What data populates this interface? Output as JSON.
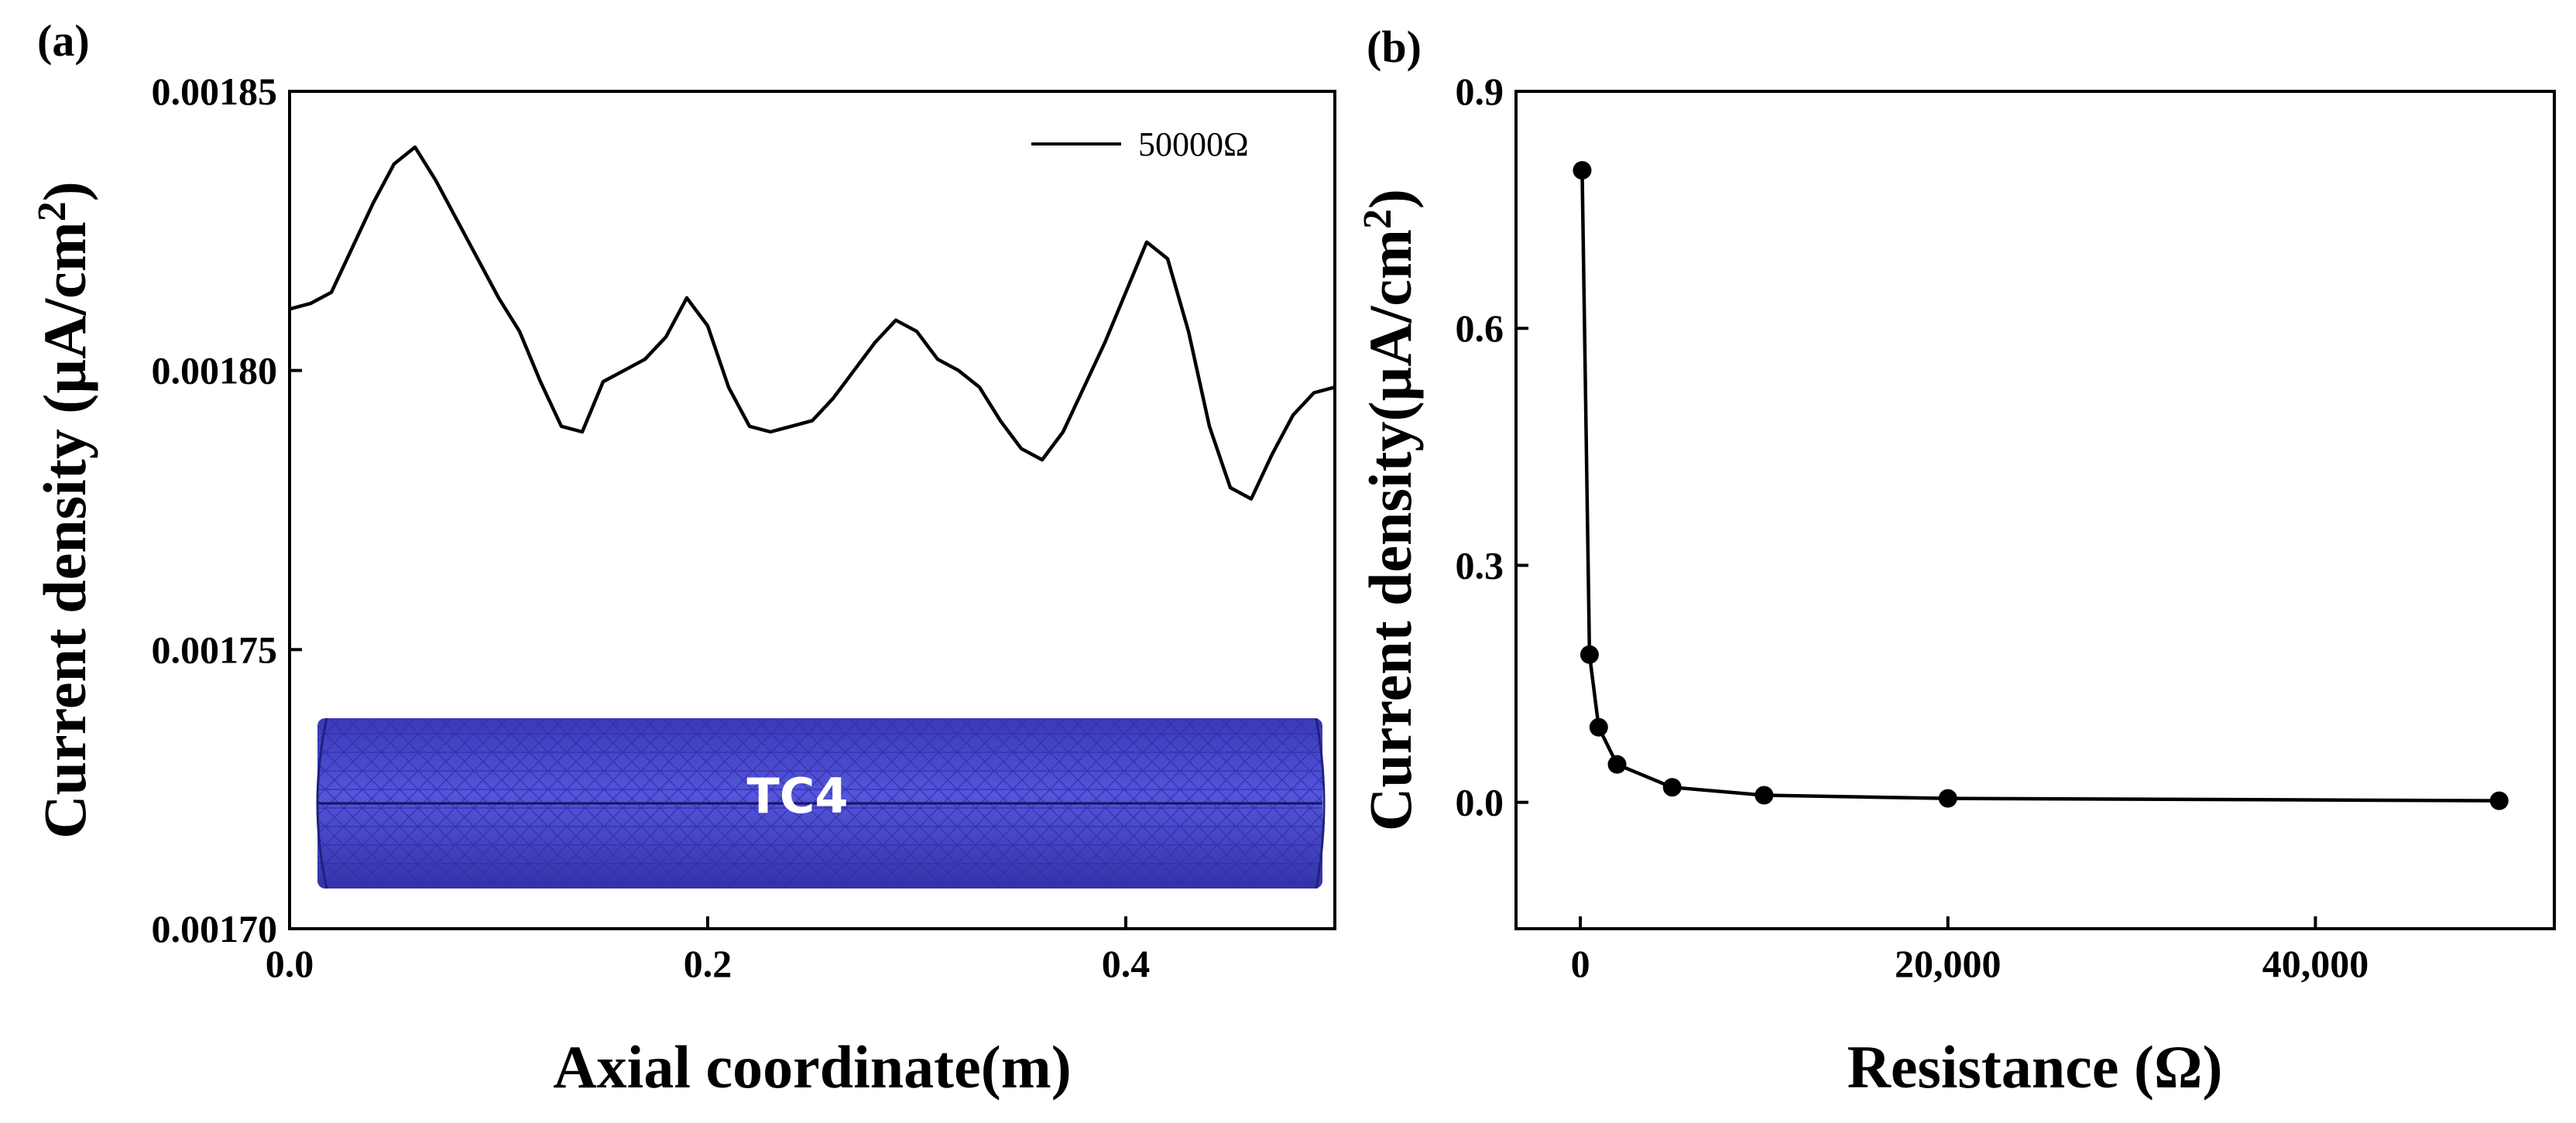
{
  "chart_data": [
    {
      "panel": "(a)",
      "type": "line",
      "xlabel": "Axial coordinate(m)",
      "ylabel_prefix": "Current density (",
      "ylabel_unit": "µA/cm",
      "ylabel_exp": "2",
      "ylabel_suffix": ")",
      "xlim": [
        0,
        0.5
      ],
      "ylim": [
        0.0017,
        0.00185
      ],
      "xticks": [
        0.0,
        0.2,
        0.4
      ],
      "xtick_labels": [
        "0.0",
        "0.2",
        "0.4"
      ],
      "yticks": [
        0.0017,
        0.00175,
        0.0018,
        0.00185
      ],
      "ytick_labels": [
        "0.00170",
        "0.00175",
        "0.00180",
        "0.00185"
      ],
      "legend": "location: top-right",
      "series": [
        {
          "name": "50000Ω",
          "x": [
            0.0,
            0.01,
            0.02,
            0.03,
            0.04,
            0.05,
            0.06,
            0.07,
            0.08,
            0.09,
            0.1,
            0.11,
            0.12,
            0.13,
            0.14,
            0.15,
            0.16,
            0.17,
            0.18,
            0.19,
            0.2,
            0.21,
            0.22,
            0.23,
            0.24,
            0.25,
            0.26,
            0.27,
            0.28,
            0.29,
            0.3,
            0.31,
            0.32,
            0.33,
            0.34,
            0.35,
            0.36,
            0.37,
            0.38,
            0.39,
            0.4,
            0.41,
            0.42,
            0.43,
            0.44,
            0.45,
            0.46,
            0.47,
            0.48,
            0.49,
            0.5
          ],
          "y": [
            0.001811,
            0.001812,
            0.001814,
            0.001822,
            0.00183,
            0.001837,
            0.00184,
            0.001834,
            0.001827,
            0.00182,
            0.001813,
            0.001807,
            0.001798,
            0.00179,
            0.001789,
            0.001798,
            0.0018,
            0.001802,
            0.001806,
            0.001813,
            0.001808,
            0.001797,
            0.00179,
            0.001789,
            0.00179,
            0.001791,
            0.001795,
            0.0018,
            0.001805,
            0.001809,
            0.001807,
            0.001802,
            0.0018,
            0.001797,
            0.001791,
            0.001786,
            0.001784,
            0.001789,
            0.001797,
            0.001805,
            0.001814,
            0.001823,
            0.00182,
            0.001807,
            0.00179,
            0.001779,
            0.001777,
            0.001785,
            0.001792,
            0.001796,
            0.001797
          ]
        }
      ],
      "inset": {
        "label": "TC4",
        "fill": "#4a4ad0",
        "mesh_color": "#2c2ca0"
      }
    },
    {
      "panel": "(b)",
      "type": "scatter",
      "connected": true,
      "xlabel": "Resistance (Ω)",
      "ylabel_prefix": "Current density(",
      "ylabel_unit": "µA/cm",
      "ylabel_exp": "2",
      "ylabel_suffix": ")",
      "xlim": [
        -3500,
        53000
      ],
      "ylim": [
        -0.16,
        0.9
      ],
      "xticks": [
        0,
        20000,
        40000
      ],
      "xtick_labels": [
        "0",
        "20,000",
        "40,000"
      ],
      "yticks": [
        0.0,
        0.3,
        0.6,
        0.9
      ],
      "ytick_labels": [
        "0.0",
        "0.3",
        "0.6",
        "0.9"
      ],
      "series": [
        {
          "name": "Current density",
          "x": [
            100,
            500,
            1000,
            2000,
            5000,
            10000,
            20000,
            50000
          ],
          "y": [
            0.8,
            0.187,
            0.095,
            0.048,
            0.019,
            0.009,
            0.005,
            0.002
          ]
        }
      ]
    }
  ]
}
